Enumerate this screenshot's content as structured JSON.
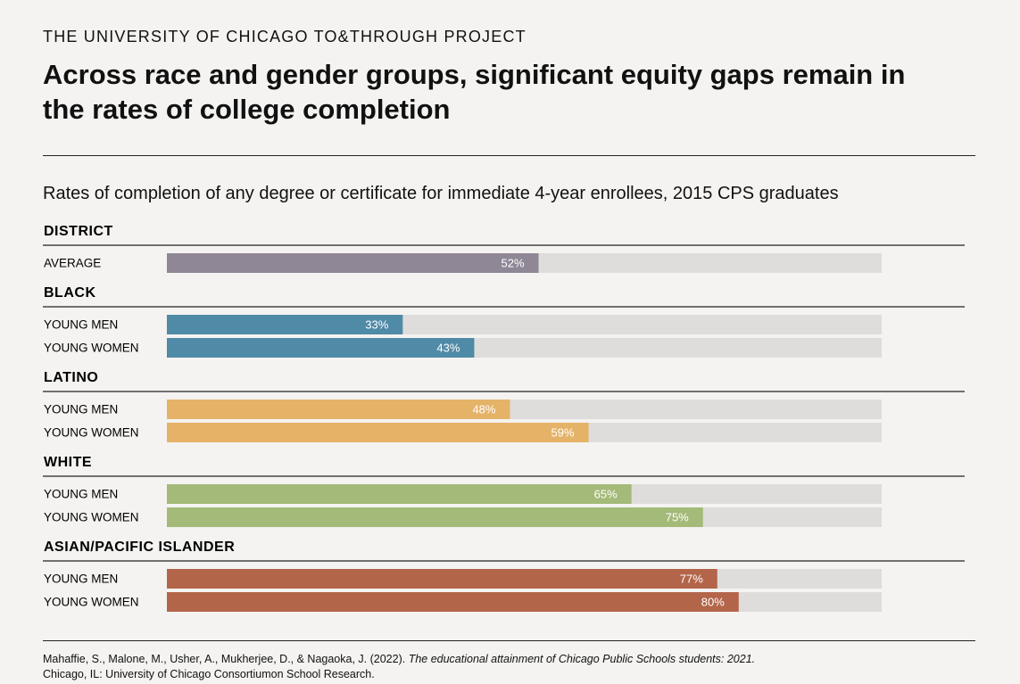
{
  "chart_data": {
    "type": "bar",
    "header": "THE UNIVERSITY OF CHICAGO TO&THROUGH PROJECT",
    "title": "Across race and gender groups, significant equity gaps remain in the rates of college completion",
    "subtitle": "Rates of completion of any degree or certificate for immediate 4-year enrollees, 2015 CPS graduates",
    "xlim": [
      0,
      100
    ],
    "groups": [
      {
        "name": "DISTRICT",
        "color": "#8f8795",
        "categories": [
          "AVERAGE"
        ],
        "values": [
          52
        ],
        "value_labels": [
          "52%"
        ]
      },
      {
        "name": "BLACK",
        "color": "#4f8aa6",
        "categories": [
          "YOUNG MEN",
          "YOUNG WOMEN"
        ],
        "values": [
          33,
          43
        ],
        "value_labels": [
          "33%",
          "43%"
        ]
      },
      {
        "name": "LATINO",
        "color": "#e5b368",
        "categories": [
          "YOUNG MEN",
          "YOUNG WOMEN"
        ],
        "values": [
          48,
          59
        ],
        "value_labels": [
          "48%",
          "59%"
        ]
      },
      {
        "name": "WHITE",
        "color": "#a3ba78",
        "categories": [
          "YOUNG MEN",
          "YOUNG WOMEN"
        ],
        "values": [
          65,
          75
        ],
        "value_labels": [
          "65%",
          "75%"
        ]
      },
      {
        "name": "ASIAN/PACIFIC ISLANDER",
        "color": "#b3654a",
        "categories": [
          "YOUNG MEN",
          "YOUNG WOMEN"
        ],
        "values": [
          77,
          80
        ],
        "value_labels": [
          "77%",
          "80%"
        ]
      }
    ],
    "source": {
      "authors": "Mahaffie, S., Malone, M., Usher, A., Mukherjee, D., & Nagaoka, J. (2022). ",
      "work": "The educational attainment of Chicago Public Schools students: 2021.",
      "publisher": "Chicago, IL: University of Chicago Consortiumon School Research."
    }
  }
}
